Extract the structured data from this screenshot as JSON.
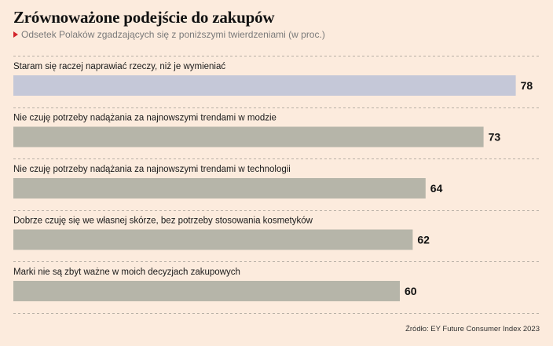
{
  "header": {
    "title": "Zrównoważone podejście do zakupów",
    "subtitle": "Odsetek Polaków zgadzających się z poniższymi twierdzeniami (w proc.)"
  },
  "footer": {
    "source": "Źródło: EY Future Consumer Index 2023"
  },
  "colors": {
    "highlight_bar": "#c5c8d8",
    "bar": "#b6b5a9",
    "separator": "#b8b0a6",
    "marker": "#d2232a"
  },
  "chart_data": {
    "type": "bar",
    "orientation": "horizontal",
    "categories": [
      "Staram się raczej naprawiać rzeczy, niż je wymieniać",
      "Nie czuję potrzeby nadążania za najnowszymi trendami w modzie",
      "Nie czuję potrzeby nadążania za najnowszymi trendami w technologii",
      "Dobrze czuję się we własnej skórze, bez potrzeby stosowania kosmetyków",
      "Marki nie są zbyt ważne w moich decyzjach zakupowych"
    ],
    "values": [
      78,
      73,
      64,
      62,
      60
    ],
    "value_labels": [
      "78",
      "73",
      "64",
      "62",
      "60"
    ],
    "highlight_index": 0,
    "xlim": [
      0,
      100
    ],
    "grid": false,
    "legend": "none"
  }
}
